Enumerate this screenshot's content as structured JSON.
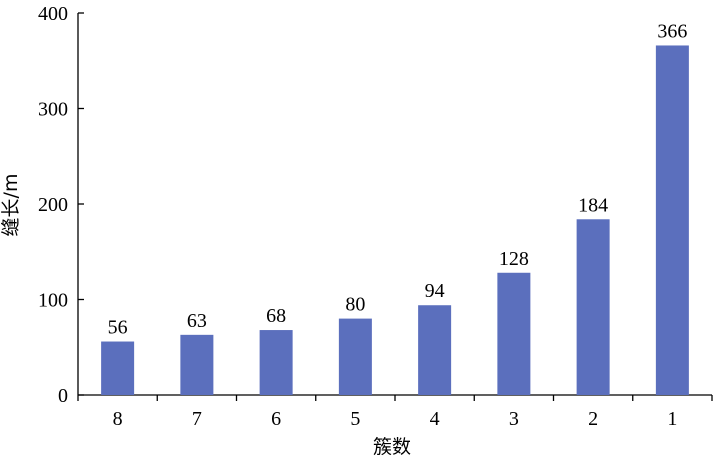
{
  "chart_data": {
    "type": "bar",
    "categories": [
      "8",
      "7",
      "6",
      "5",
      "4",
      "3",
      "2",
      "1"
    ],
    "values": [
      56,
      63,
      68,
      80,
      94,
      128,
      184,
      366
    ],
    "data_labels": [
      "56",
      "63",
      "68",
      "80",
      "94",
      "128",
      "184",
      "366"
    ],
    "xlabel": "簇数",
    "ylabel": "缝长/m",
    "ylim": [
      0,
      400
    ],
    "yticks": [
      0,
      100,
      200,
      300,
      400
    ],
    "ytick_labels": [
      "0",
      "100",
      "200",
      "300",
      "400"
    ],
    "grid": false,
    "bar_color": "#5b6fbd"
  }
}
